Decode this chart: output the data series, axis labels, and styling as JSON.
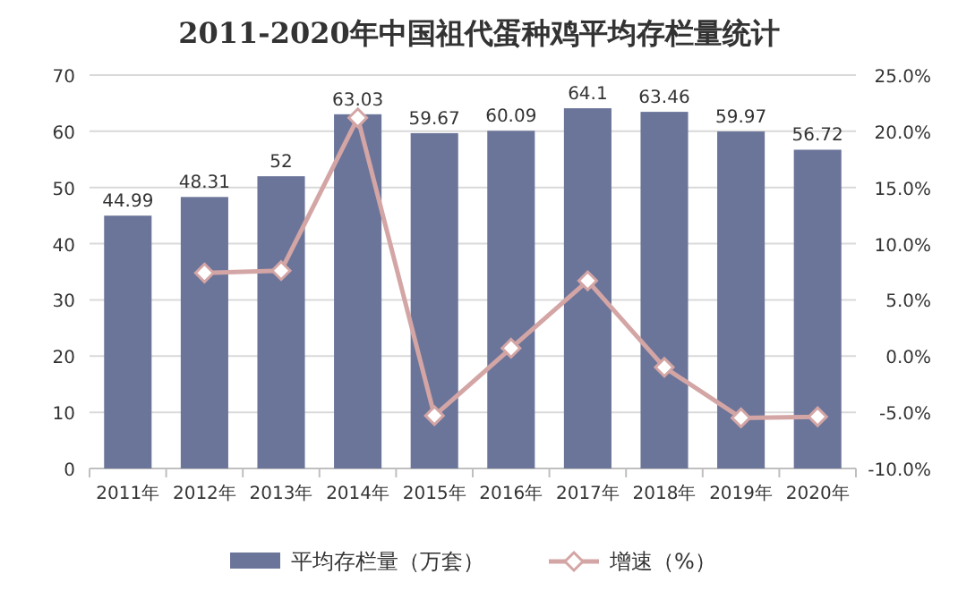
{
  "chart_data": {
    "type": "bar",
    "title": "2011-2020年中国祖代蛋种鸡平均存栏量统计",
    "categories": [
      "2011年",
      "2012年",
      "2013年",
      "2014年",
      "2015年",
      "2016年",
      "2017年",
      "2018年",
      "2019年",
      "2020年"
    ],
    "series": [
      {
        "name": "平均存栏量（万套）",
        "color": "#6b7599",
        "values": [
          44.99,
          48.31,
          52,
          63.03,
          59.67,
          60.09,
          64.1,
          63.46,
          59.97,
          56.72
        ],
        "value_labels": [
          "44.99",
          "48.31",
          "52",
          "63.03",
          "59.67",
          "60.09",
          "64.1",
          "63.46",
          "59.97",
          "56.72"
        ]
      },
      {
        "name": "增速（%）",
        "type": "line",
        "axis": "y2",
        "color": "#d4a5a5",
        "marker": "diamond",
        "values": [
          null,
          7.4,
          7.6,
          21.2,
          -5.3,
          0.7,
          6.7,
          -1.0,
          -5.5,
          -5.4
        ]
      }
    ],
    "ylim": [
      0,
      70
    ],
    "yticks": [
      0,
      10,
      20,
      30,
      40,
      50,
      60,
      70
    ],
    "y2lim": [
      -10,
      25
    ],
    "y2ticks": [
      {
        "value": -10,
        "label": "-10.0%"
      },
      {
        "value": -5,
        "label": "-5.0%"
      },
      {
        "value": 0,
        "label": "0.0%"
      },
      {
        "value": 5,
        "label": "5.0%"
      },
      {
        "value": 10,
        "label": "10.0%"
      },
      {
        "value": 15,
        "label": "15.0%"
      },
      {
        "value": 20,
        "label": "20.0%"
      },
      {
        "value": 25,
        "label": "25.0%"
      }
    ],
    "grid": "y",
    "legend": "bottom"
  }
}
